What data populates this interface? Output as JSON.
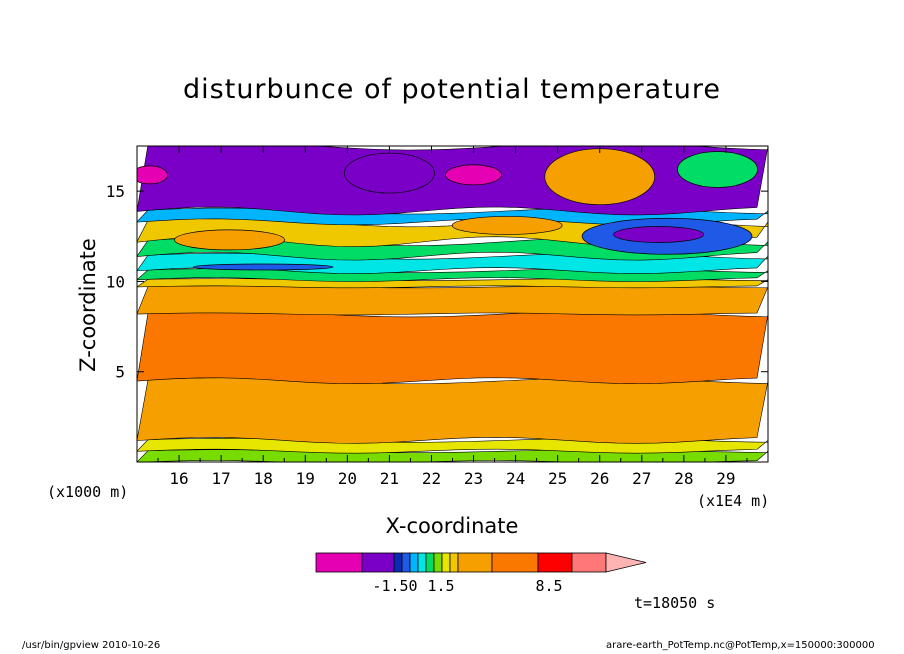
{
  "chart_data": {
    "type": "heatmap",
    "title": "disturbunce of potential temperature",
    "xlabel": "X-coordinate",
    "ylabel": "Z-coordinate",
    "x_unit": "(x1E4 m)",
    "y_unit": "(x1000 m)",
    "xlim": [
      15.0,
      30.0
    ],
    "ylim": [
      0.0,
      17.5
    ],
    "x_ticks": [
      16,
      17,
      18,
      19,
      20,
      21,
      22,
      23,
      24,
      25,
      26,
      27,
      28,
      29
    ],
    "y_ticks": [
      5,
      10,
      15
    ],
    "colorbar": {
      "labels": [
        "-1.50",
        "1.5",
        "8.5"
      ],
      "colors": [
        "#e600b4",
        "#7a00c8",
        "#0a2bb4",
        "#1e5ae6",
        "#00b4ff",
        "#00e6e6",
        "#00dc64",
        "#78dc00",
        "#e6e600",
        "#f0c800",
        "#f5a000",
        "#fa7800",
        "#ff0000",
        "#ff7878",
        "#ffb4b4"
      ]
    },
    "time_label": "t=18050 s",
    "footer_left": "/usr/bin/gpview  2010-10-26",
    "footer_right": "arare-earth_PotTemp.nc@PotTemp,x=150000:300000",
    "bands_description": "Layered contour field: low-level orange (~5-8 K) with red-orange core (~8.5) between z=3 and z=8 km; thin yellow/green layers near surface and at z=9-10 km; cyan/blue and purple/magenta negative anomalies aloft z=11-17 km."
  }
}
